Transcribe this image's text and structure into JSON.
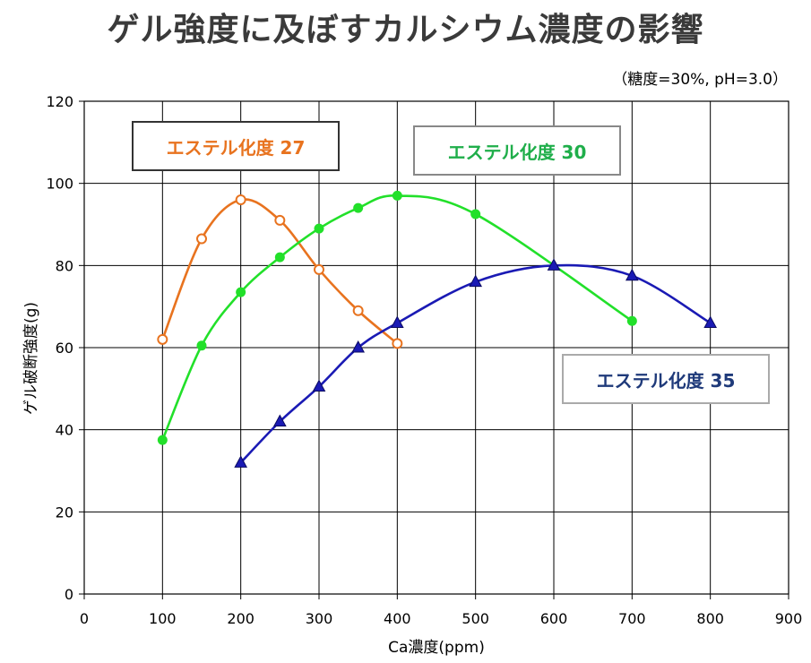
{
  "title": "ゲル強度に及ぼすカルシウム濃度の影響",
  "subtitle": "（糖度=30%, pH=3.0）",
  "chart_data": {
    "type": "line",
    "xlabel": "Ca濃度(ppm)",
    "ylabel": "ゲル破断強度(g)",
    "xlim": [
      0,
      900
    ],
    "ylim": [
      0,
      120
    ],
    "xticks": [
      0,
      100,
      200,
      300,
      400,
      500,
      600,
      700,
      800,
      900
    ],
    "yticks": [
      0,
      20,
      40,
      60,
      80,
      100,
      120
    ],
    "grid": true,
    "series": [
      {
        "name": "エステル化度 27",
        "color": "#e8731f",
        "marker": "open-circle",
        "x": [
          100,
          150,
          200,
          250,
          300,
          350,
          400
        ],
        "y": [
          62,
          86.5,
          96,
          91,
          79,
          69,
          61
        ]
      },
      {
        "name": "エステル化度 30",
        "color": "#22e02a",
        "marker": "filled-circle",
        "x": [
          100,
          150,
          200,
          250,
          300,
          350,
          400,
          500,
          700
        ],
        "y": [
          37.5,
          60.5,
          73.5,
          82,
          89,
          94,
          97,
          92.5,
          66.5
        ]
      },
      {
        "name": "エステル化度 35",
        "color": "#1a1ab4",
        "marker": "triangle",
        "x": [
          200,
          250,
          300,
          350,
          400,
          500,
          600,
          700,
          800
        ],
        "y": [
          32,
          42,
          50.5,
          60,
          66,
          76,
          80,
          77.5,
          66
        ]
      }
    ],
    "legend": [
      {
        "label": "エステル化度 27",
        "text_color": "#e8731f",
        "border": "#333333"
      },
      {
        "label": "エステル化度 30",
        "text_color": "#1fae4a",
        "border": "#888888"
      },
      {
        "label": "エステル化度 35",
        "text_color": "#1f3a7a",
        "border": "#aaaaaa"
      }
    ]
  }
}
